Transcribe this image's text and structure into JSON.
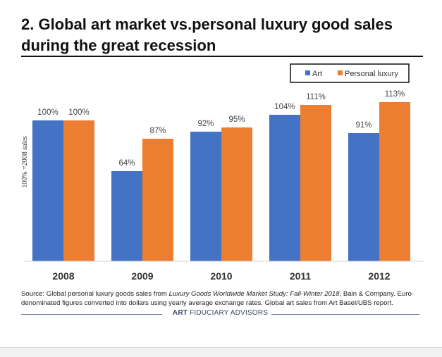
{
  "title": "2. Global art market vs.personal luxury good sales during the great recession",
  "chart_data": {
    "type": "bar",
    "categories": [
      "2008",
      "2009",
      "2010",
      "2011",
      "2012"
    ],
    "series": [
      {
        "name": "Art",
        "color": "#4472C4",
        "values": [
          100,
          64,
          92,
          104,
          91
        ],
        "labels": [
          "100%",
          "64%",
          "92%",
          "104%",
          "91%"
        ]
      },
      {
        "name": "Personal luxury",
        "color": "#ED7D31",
        "values": [
          100,
          87,
          95,
          111,
          113
        ],
        "labels": [
          "100%",
          "87%",
          "95%",
          "111%",
          "113%"
        ]
      }
    ],
    "ylabel": "100% =2008 sales",
    "xlabel": "",
    "ylim": [
      0,
      120
    ],
    "legend": "top-right"
  },
  "source": {
    "prefix": "Source: Global personal luxury goods sales from ",
    "study": "Luxury Goods Worldwide Market Study: Fall-Winter 2018",
    "suffix": ", Bain & Company. Euro-denominated figures converted into dollars using yearly average exchange rates. Global art sales from Art Basel/UBS report."
  },
  "brand": {
    "strong": "ART",
    "rest": " FIDUCIARY ADVISORS"
  }
}
